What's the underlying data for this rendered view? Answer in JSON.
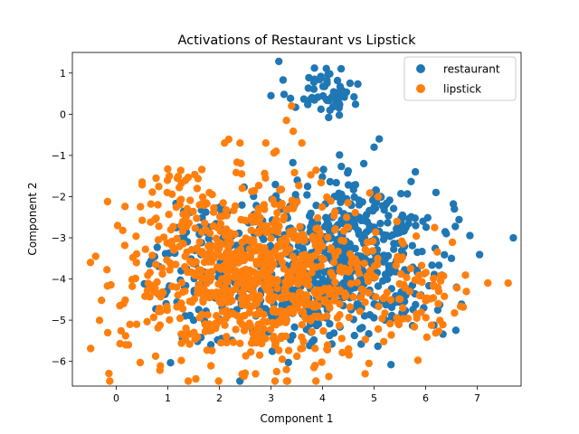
{
  "chart_data": {
    "type": "scatter",
    "title": "Activations of Restaurant vs Lipstick",
    "xlabel": "Component 1",
    "ylabel": "Component 2",
    "xlim": [
      -0.85,
      7.85
    ],
    "ylim": [
      -6.6,
      1.5
    ],
    "xticks": [
      0,
      1,
      2,
      3,
      4,
      5,
      6,
      7
    ],
    "yticks": [
      -6,
      -5,
      -4,
      -3,
      -2,
      -1,
      0,
      1
    ],
    "grid": false,
    "legend_position": "top-right",
    "series": [
      {
        "name": "restaurant",
        "color": "#1f77b4",
        "clusters": [
          {
            "cx": 4.0,
            "cy": 0.6,
            "sx": 0.35,
            "sy": 0.35,
            "n": 55
          },
          {
            "cx": 4.5,
            "cy": -3.7,
            "sx": 1.0,
            "sy": 0.9,
            "n": 420
          },
          {
            "cx": 4.8,
            "cy": -2.5,
            "sx": 0.7,
            "sy": 0.5,
            "n": 90
          },
          {
            "cx": 2.6,
            "cy": -3.8,
            "sx": 1.0,
            "sy": 0.9,
            "n": 230
          }
        ],
        "extra_points": [
          [
            5.8,
            -1.4
          ],
          [
            5.1,
            -0.6
          ],
          [
            5.0,
            -0.8
          ],
          [
            4.8,
            -1.2
          ],
          [
            3.0,
            0.45
          ],
          [
            6.4,
            -2.9
          ],
          [
            6.5,
            -3.5
          ],
          [
            6.6,
            -4.2
          ],
          [
            6.2,
            -1.9
          ]
        ]
      },
      {
        "name": "lipstick",
        "color": "#ff7f0e",
        "clusters": [
          {
            "cx": 2.6,
            "cy": -3.9,
            "sx": 1.25,
            "sy": 1.05,
            "n": 660
          },
          {
            "cx": 3.4,
            "cy": -4.3,
            "sx": 0.9,
            "sy": 0.8,
            "n": 160
          },
          {
            "cx": 1.3,
            "cy": -2.0,
            "sx": 0.5,
            "sy": 0.4,
            "n": 40
          },
          {
            "cx": 5.8,
            "cy": -4.4,
            "sx": 0.6,
            "sy": 0.7,
            "n": 70
          }
        ],
        "extra_points": [
          [
            7.6,
            -4.1
          ],
          [
            3.4,
            0.2
          ],
          [
            3.3,
            -0.15
          ],
          [
            3.6,
            -0.7
          ],
          [
            3.1,
            -0.9
          ],
          [
            2.9,
            -0.7
          ],
          [
            2.4,
            -0.7
          ],
          [
            2.1,
            -0.7
          ],
          [
            3.3,
            -6.2
          ],
          [
            4.9,
            -6.05
          ],
          [
            -0.5,
            -3.6
          ],
          [
            -0.4,
            -3.45
          ]
        ]
      }
    ]
  }
}
